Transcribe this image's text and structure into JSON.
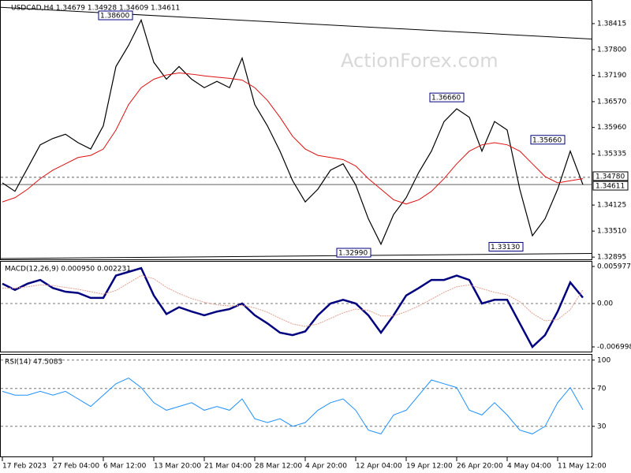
{
  "chart_data": [
    {
      "type": "line",
      "title": "USDCAD,H4  1.34679 1.34928 1.34609 1.34611",
      "watermark": "ActionForex.com",
      "categories": [
        "17 Feb 2023",
        null,
        null,
        null,
        "27 Feb 04:00",
        null,
        null,
        null,
        "6 Mar 12:00",
        null,
        null,
        null,
        "13 Mar 20:00",
        null,
        null,
        null,
        "21 Mar 04:00",
        null,
        null,
        null,
        "28 Mar 12:00",
        null,
        null,
        null,
        "4 Apr 20:00",
        null,
        null,
        null,
        "12 Apr 04:00",
        null,
        null,
        null,
        "19 Apr 12:00",
        null,
        null,
        null,
        "26 Apr 20:00",
        null,
        null,
        null,
        "4 May 04:00",
        null,
        null,
        null,
        "11 May 12:00",
        null,
        null
      ],
      "series": [
        {
          "color": "#000000",
          "values": [
            1.3465,
            1.3445,
            1.35,
            1.3555,
            1.357,
            1.358,
            1.356,
            1.3545,
            1.36,
            1.374,
            1.379,
            1.385,
            1.375,
            1.371,
            1.374,
            1.371,
            1.369,
            1.3705,
            1.369,
            1.376,
            1.365,
            1.36,
            1.354,
            1.347,
            1.342,
            1.345,
            1.3495,
            1.351,
            1.346,
            1.338,
            1.332,
            1.339,
            1.343,
            1.349,
            1.354,
            1.361,
            1.364,
            1.362,
            1.354,
            1.361,
            1.359,
            1.345,
            1.334,
            1.338,
            1.345,
            1.354,
            1.3461
          ]
        },
        {
          "color": "#e01010",
          "values": [
            1.342,
            1.343,
            1.345,
            1.3475,
            1.3495,
            1.351,
            1.3525,
            1.353,
            1.3545,
            1.359,
            1.365,
            1.369,
            1.371,
            1.372,
            1.3725,
            1.3722,
            1.3718,
            1.3715,
            1.3712,
            1.3708,
            1.369,
            1.366,
            1.362,
            1.3575,
            1.3545,
            1.353,
            1.3525,
            1.352,
            1.3505,
            1.3475,
            1.345,
            1.3425,
            1.3415,
            1.3425,
            1.3445,
            1.3475,
            1.351,
            1.354,
            1.3555,
            1.356,
            1.3555,
            1.354,
            1.351,
            1.348,
            1.3465,
            1.347,
            1.3475
          ]
        }
      ],
      "ylim": [
        1.3286,
        1.3888
      ],
      "yticks": [
        1.38415,
        {
          "value": 1.378,
          "label": "1.37800"
        },
        {
          "value": 1.3719,
          "label": "1.37190"
        },
        {
          "value": 1.3657,
          "label": "1.36570"
        },
        {
          "value": 1.3596,
          "label": "1.35960"
        },
        1.35335,
        1.34125,
        {
          "value": 1.3351,
          "label": "1.33510"
        },
        1.32895
      ],
      "annotations": [
        {
          "label": "1.38600",
          "value": 1.386
        },
        {
          "label": "1.36660",
          "value": 1.3666
        },
        {
          "label": "1.35660",
          "value": 1.3566
        },
        {
          "label": "1.32990",
          "value": 1.3299
        },
        {
          "label": "1.33130",
          "value": 1.3313
        }
      ],
      "price_lines": [
        {
          "label": "1.34780",
          "value": 1.3478,
          "style": "dashed"
        },
        {
          "label": "1.34611",
          "value": 1.34611,
          "style": "solid"
        }
      ],
      "trendlines": [
        {
          "values": [
            1.388,
            1.3805
          ]
        },
        {
          "values": [
            1.3286,
            1.3298
          ]
        }
      ]
    },
    {
      "type": "line",
      "title": "MACD(12,26,9) 0.000950 0.002231",
      "series": [
        {
          "color": "#00007f",
          "values": [
            0.0032,
            0.0022,
            0.0032,
            0.0038,
            0.0025,
            0.0019,
            0.0017,
            0.0009,
            0.0009,
            0.0045,
            0.0051,
            0.0057,
            0.0013,
            -0.0017,
            -0.0006,
            -0.0013,
            -0.0019,
            -0.0013,
            -0.0009,
            0.0,
            -0.0019,
            -0.0032,
            -0.0047,
            -0.0051,
            -0.0045,
            -0.0019,
            0.0,
            0.0006,
            0.0,
            -0.0019,
            -0.0047,
            -0.0019,
            0.0013,
            0.0025,
            0.0038,
            0.0038,
            0.0045,
            0.0038,
            0.0,
            0.0006,
            0.0006,
            -0.0032,
            -0.007,
            -0.0051,
            -0.0013,
            0.0034,
            0.00095
          ]
        },
        {
          "color": "#e0a090",
          "values": [
            0.0025,
            0.0025,
            0.0027,
            0.003,
            0.0029,
            0.0026,
            0.0023,
            0.0019,
            0.0015,
            0.0021,
            0.0033,
            0.0045,
            0.004,
            0.0026,
            0.0016,
            0.0008,
            0.0002,
            -0.0002,
            -0.0004,
            -0.0003,
            -0.0007,
            -0.0014,
            -0.0024,
            -0.0033,
            -0.0037,
            -0.0033,
            -0.0024,
            -0.0015,
            -0.0009,
            -0.0011,
            -0.002,
            -0.002,
            -0.0013,
            -0.0004,
            0.0007,
            0.0018,
            0.0027,
            0.003,
            0.0024,
            0.0018,
            0.0014,
            0.0003,
            -0.0016,
            -0.0028,
            -0.0026,
            -0.001,
            0.002231
          ]
        }
      ],
      "ylim": [
        -0.00763,
        0.00661
      ],
      "yticks": [
        0.005977,
        {
          "value": 0,
          "label": "0.00"
        },
        -0.006998
      ]
    },
    {
      "type": "line",
      "title": "RSI(14) 47.5083",
      "series": [
        {
          "color": "#1e90ff",
          "values": [
            67,
            63,
            63,
            67,
            63,
            67,
            59,
            51,
            63,
            75,
            81,
            71,
            55,
            47,
            51,
            55,
            47,
            51,
            47,
            59,
            38,
            34,
            38,
            30,
            34,
            47,
            55,
            59,
            47,
            26,
            22,
            42,
            47,
            63,
            79,
            75,
            71,
            47,
            42,
            55,
            42,
            26,
            22,
            30,
            55,
            71,
            47.5083
          ]
        }
      ],
      "ylim": [
        -1,
        104
      ],
      "yticks": [
        100,
        70,
        30
      ],
      "grid": true
    }
  ]
}
